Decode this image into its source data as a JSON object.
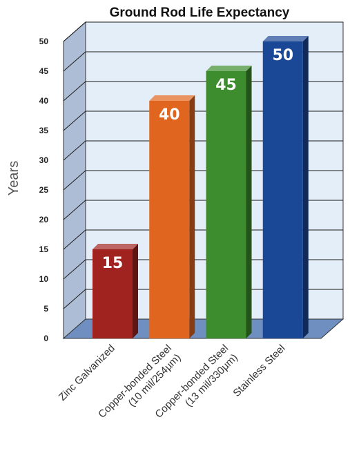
{
  "chart_data": {
    "type": "bar",
    "title": "Ground Rod Life Expectancy",
    "ylabel": "Years",
    "xlabel": "",
    "ylim": [
      0,
      50
    ],
    "yticks": [
      0,
      5,
      10,
      15,
      20,
      25,
      30,
      35,
      40,
      45,
      50
    ],
    "grid": true,
    "style": "3d",
    "categories": [
      {
        "lines": [
          "Zinc Galvanized"
        ]
      },
      {
        "lines": [
          "Copper-bonded Steel",
          "(10 mil/254µm)"
        ]
      },
      {
        "lines": [
          "Copper-bonded Steel",
          "(13 mil/330µm)"
        ]
      },
      {
        "lines": [
          "Stainless Steel"
        ]
      }
    ],
    "values": [
      15,
      40,
      45,
      50
    ],
    "data_labels": [
      "15",
      "40",
      "45",
      "50"
    ],
    "colors": {
      "bars": [
        "#a0231f",
        "#e0661f",
        "#3d8c2d",
        "#1a4796"
      ],
      "back_wall": "#e4eef8",
      "side_wall": "#aebdd6",
      "floor": "#6e8fbf",
      "grid": "#1a1a1a"
    }
  }
}
